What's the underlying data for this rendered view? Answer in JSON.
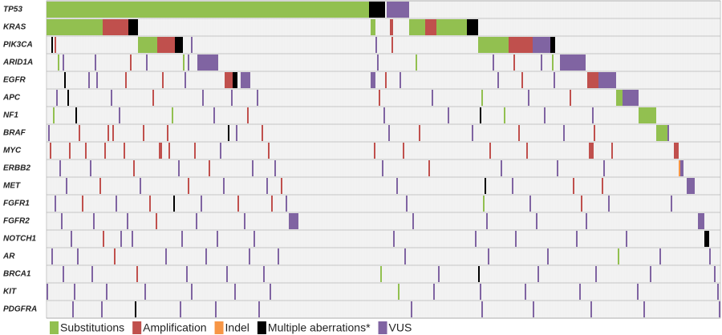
{
  "chart_data": {
    "type": "oncoprint",
    "samples": 420,
    "legend": [
      {
        "name": "Substitutions",
        "color": "#92c050"
      },
      {
        "name": "Amplification",
        "color": "#c0504d"
      },
      {
        "name": "Indel",
        "color": "#f79646"
      },
      {
        "name": "Multiple aberrations*",
        "color": "#000000"
      },
      {
        "name": "VUS",
        "color": "#8064a2"
      }
    ],
    "rows": [
      {
        "gene": "TP53",
        "alterations": [
          [
            0,
            201,
            0
          ],
          [
            201,
            10,
            3
          ],
          [
            212,
            14,
            4
          ]
        ]
      },
      {
        "gene": "KRAS",
        "alterations": [
          [
            0,
            35,
            0
          ],
          [
            35,
            16,
            1
          ],
          [
            51,
            6,
            3
          ],
          [
            202,
            3,
            0
          ],
          [
            214,
            2,
            1
          ],
          [
            226,
            10,
            0
          ],
          [
            236,
            7,
            1
          ],
          [
            243,
            19,
            0
          ],
          [
            262,
            7,
            3
          ]
        ]
      },
      {
        "gene": "PIK3CA",
        "alterations": [
          [
            3,
            1,
            3
          ],
          [
            5,
            1,
            1
          ],
          [
            57,
            12,
            0
          ],
          [
            69,
            11,
            1
          ],
          [
            80,
            5,
            3
          ],
          [
            90,
            1,
            4
          ],
          [
            205,
            1,
            4
          ],
          [
            215,
            1,
            1
          ],
          [
            269,
            19,
            0
          ],
          [
            288,
            15,
            1
          ],
          [
            303,
            11,
            4
          ],
          [
            314,
            3,
            3
          ]
        ]
      },
      {
        "gene": "ARID1A",
        "alterations": [
          [
            7,
            1,
            0
          ],
          [
            10,
            1,
            4
          ],
          [
            30,
            1,
            4
          ],
          [
            52,
            1,
            1
          ],
          [
            62,
            1,
            4
          ],
          [
            85,
            1,
            0
          ],
          [
            88,
            1,
            4
          ],
          [
            94,
            13,
            4
          ],
          [
            206,
            1,
            4
          ],
          [
            230,
            1,
            0
          ],
          [
            278,
            1,
            4
          ],
          [
            291,
            1,
            1
          ],
          [
            308,
            1,
            4
          ],
          [
            315,
            1,
            0
          ],
          [
            320,
            16,
            4
          ]
        ]
      },
      {
        "gene": "EGFR",
        "alterations": [
          [
            11,
            1,
            3
          ],
          [
            26,
            1,
            4
          ],
          [
            31,
            1,
            4
          ],
          [
            49,
            1,
            1
          ],
          [
            72,
            1,
            1
          ],
          [
            86,
            1,
            4
          ],
          [
            111,
            5,
            1
          ],
          [
            116,
            3,
            3
          ],
          [
            121,
            6,
            4
          ],
          [
            202,
            3,
            4
          ],
          [
            211,
            1,
            1
          ],
          [
            220,
            1,
            4
          ],
          [
            281,
            1,
            4
          ],
          [
            296,
            1,
            1
          ],
          [
            316,
            1,
            4
          ],
          [
            337,
            7,
            1
          ],
          [
            344,
            11,
            4
          ]
        ]
      },
      {
        "gene": "APC",
        "alterations": [
          [
            6,
            1,
            4
          ],
          [
            13,
            1,
            3
          ],
          [
            40,
            1,
            4
          ],
          [
            66,
            1,
            1
          ],
          [
            97,
            1,
            4
          ],
          [
            115,
            1,
            4
          ],
          [
            131,
            1,
            4
          ],
          [
            207,
            1,
            1
          ],
          [
            240,
            1,
            4
          ],
          [
            271,
            1,
            0
          ],
          [
            300,
            1,
            4
          ],
          [
            326,
            1,
            1
          ],
          [
            355,
            4,
            0
          ],
          [
            359,
            10,
            4
          ]
        ]
      },
      {
        "gene": "NF1",
        "alterations": [
          [
            4,
            1,
            0
          ],
          [
            18,
            1,
            3
          ],
          [
            45,
            1,
            4
          ],
          [
            78,
            1,
            0
          ],
          [
            104,
            1,
            4
          ],
          [
            125,
            1,
            1
          ],
          [
            210,
            1,
            4
          ],
          [
            250,
            1,
            4
          ],
          [
            270,
            1,
            3
          ],
          [
            285,
            1,
            0
          ],
          [
            310,
            1,
            4
          ],
          [
            340,
            1,
            4
          ],
          [
            369,
            11,
            0
          ]
        ]
      },
      {
        "gene": "BRAF",
        "alterations": [
          [
            1,
            1,
            4
          ],
          [
            20,
            1,
            1
          ],
          [
            38,
            1,
            1
          ],
          [
            41,
            1,
            1
          ],
          [
            60,
            1,
            1
          ],
          [
            75,
            1,
            1
          ],
          [
            113,
            1,
            3
          ],
          [
            118,
            1,
            4
          ],
          [
            134,
            1,
            1
          ],
          [
            213,
            1,
            4
          ],
          [
            232,
            1,
            1
          ],
          [
            265,
            1,
            4
          ],
          [
            294,
            1,
            1
          ],
          [
            322,
            1,
            4
          ],
          [
            341,
            1,
            1
          ],
          [
            380,
            7,
            0
          ],
          [
            387,
            1,
            4
          ]
        ]
      },
      {
        "gene": "MYC",
        "alterations": [
          [
            2,
            1,
            1
          ],
          [
            14,
            1,
            1
          ],
          [
            24,
            1,
            1
          ],
          [
            36,
            1,
            1
          ],
          [
            48,
            1,
            1
          ],
          [
            70,
            2,
            1
          ],
          [
            76,
            1,
            1
          ],
          [
            92,
            1,
            1
          ],
          [
            108,
            1,
            4
          ],
          [
            138,
            1,
            1
          ],
          [
            204,
            1,
            1
          ],
          [
            222,
            1,
            1
          ],
          [
            276,
            1,
            1
          ],
          [
            299,
            1,
            1
          ],
          [
            338,
            3,
            1
          ],
          [
            352,
            1,
            1
          ],
          [
            391,
            3,
            1
          ]
        ]
      },
      {
        "gene": "ERBB2",
        "alterations": [
          [
            8,
            1,
            4
          ],
          [
            27,
            1,
            4
          ],
          [
            54,
            1,
            1
          ],
          [
            82,
            1,
            4
          ],
          [
            101,
            1,
            1
          ],
          [
            128,
            1,
            4
          ],
          [
            142,
            1,
            4
          ],
          [
            209,
            1,
            4
          ],
          [
            238,
            1,
            1
          ],
          [
            283,
            1,
            4
          ],
          [
            318,
            1,
            4
          ],
          [
            347,
            1,
            4
          ],
          [
            394,
            1,
            2
          ],
          [
            395,
            2,
            4
          ]
        ]
      },
      {
        "gene": "MET",
        "alterations": [
          [
            12,
            1,
            4
          ],
          [
            33,
            1,
            1
          ],
          [
            58,
            1,
            4
          ],
          [
            88,
            1,
            1
          ],
          [
            110,
            1,
            4
          ],
          [
            137,
            1,
            4
          ],
          [
            146,
            1,
            1
          ],
          [
            218,
            1,
            4
          ],
          [
            273,
            1,
            3
          ],
          [
            290,
            1,
            4
          ],
          [
            328,
            1,
            1
          ],
          [
            346,
            1,
            1
          ],
          [
            399,
            5,
            4
          ]
        ]
      },
      {
        "gene": "FGFR1",
        "alterations": [
          [
            5,
            1,
            4
          ],
          [
            22,
            1,
            1
          ],
          [
            43,
            1,
            4
          ],
          [
            64,
            1,
            1
          ],
          [
            79,
            1,
            3
          ],
          [
            96,
            1,
            4
          ],
          [
            119,
            1,
            1
          ],
          [
            140,
            1,
            1
          ],
          [
            149,
            1,
            4
          ],
          [
            224,
            1,
            4
          ],
          [
            272,
            1,
            0
          ],
          [
            301,
            1,
            4
          ],
          [
            333,
            1,
            1
          ],
          [
            350,
            1,
            4
          ],
          [
            389,
            1,
            4
          ]
        ]
      },
      {
        "gene": "FGFR2",
        "alterations": [
          [
            9,
            1,
            4
          ],
          [
            29,
            1,
            4
          ],
          [
            50,
            1,
            4
          ],
          [
            68,
            1,
            1
          ],
          [
            93,
            1,
            4
          ],
          [
            123,
            1,
            4
          ],
          [
            151,
            6,
            4
          ],
          [
            228,
            1,
            4
          ],
          [
            274,
            1,
            4
          ],
          [
            305,
            1,
            4
          ],
          [
            336,
            1,
            4
          ],
          [
            406,
            4,
            4
          ]
        ]
      },
      {
        "gene": "NOTCH1",
        "alterations": [
          [
            15,
            1,
            4
          ],
          [
            35,
            1,
            1
          ],
          [
            46,
            1,
            4
          ],
          [
            53,
            1,
            4
          ],
          [
            84,
            1,
            4
          ],
          [
            106,
            1,
            4
          ],
          [
            129,
            1,
            4
          ],
          [
            216,
            1,
            4
          ],
          [
            267,
            1,
            4
          ],
          [
            292,
            1,
            4
          ],
          [
            330,
            1,
            4
          ],
          [
            361,
            1,
            4
          ],
          [
            410,
            3,
            3
          ]
        ]
      },
      {
        "gene": "AR",
        "alterations": [
          [
            3,
            1,
            4
          ],
          [
            19,
            1,
            4
          ],
          [
            42,
            1,
            1
          ],
          [
            74,
            1,
            4
          ],
          [
            99,
            1,
            4
          ],
          [
            126,
            1,
            4
          ],
          [
            144,
            1,
            4
          ],
          [
            223,
            1,
            4
          ],
          [
            275,
            1,
            4
          ],
          [
            312,
            1,
            4
          ],
          [
            356,
            1,
            0
          ],
          [
            382,
            1,
            4
          ],
          [
            413,
            1,
            4
          ]
        ]
      },
      {
        "gene": "BRCA1",
        "alterations": [
          [
            10,
            1,
            4
          ],
          [
            28,
            1,
            4
          ],
          [
            56,
            1,
            1
          ],
          [
            87,
            1,
            4
          ],
          [
            112,
            1,
            4
          ],
          [
            135,
            1,
            4
          ],
          [
            208,
            1,
            0
          ],
          [
            244,
            1,
            4
          ],
          [
            269,
            1,
            3
          ],
          [
            306,
            1,
            4
          ],
          [
            342,
            1,
            4
          ],
          [
            376,
            1,
            4
          ],
          [
            416,
            1,
            4
          ]
        ]
      },
      {
        "gene": "KIT",
        "alterations": [
          [
            0,
            1,
            4
          ],
          [
            17,
            1,
            4
          ],
          [
            37,
            1,
            4
          ],
          [
            61,
            1,
            4
          ],
          [
            90,
            1,
            4
          ],
          [
            117,
            1,
            4
          ],
          [
            139,
            1,
            4
          ],
          [
            219,
            1,
            0
          ],
          [
            241,
            1,
            4
          ],
          [
            270,
            1,
            4
          ],
          [
            298,
            1,
            4
          ],
          [
            332,
            1,
            4
          ],
          [
            368,
            1,
            4
          ],
          [
            418,
            1,
            4
          ]
        ]
      },
      {
        "gene": "PDGFRA",
        "alterations": [
          [
            16,
            1,
            4
          ],
          [
            34,
            1,
            4
          ],
          [
            55,
            1,
            3
          ],
          [
            83,
            1,
            4
          ],
          [
            105,
            1,
            4
          ],
          [
            132,
            1,
            4
          ],
          [
            227,
            1,
            4
          ],
          [
            271,
            1,
            4
          ],
          [
            303,
            1,
            4
          ],
          [
            339,
            1,
            4
          ],
          [
            372,
            1,
            4
          ],
          [
            419,
            1,
            4
          ]
        ]
      }
    ]
  }
}
